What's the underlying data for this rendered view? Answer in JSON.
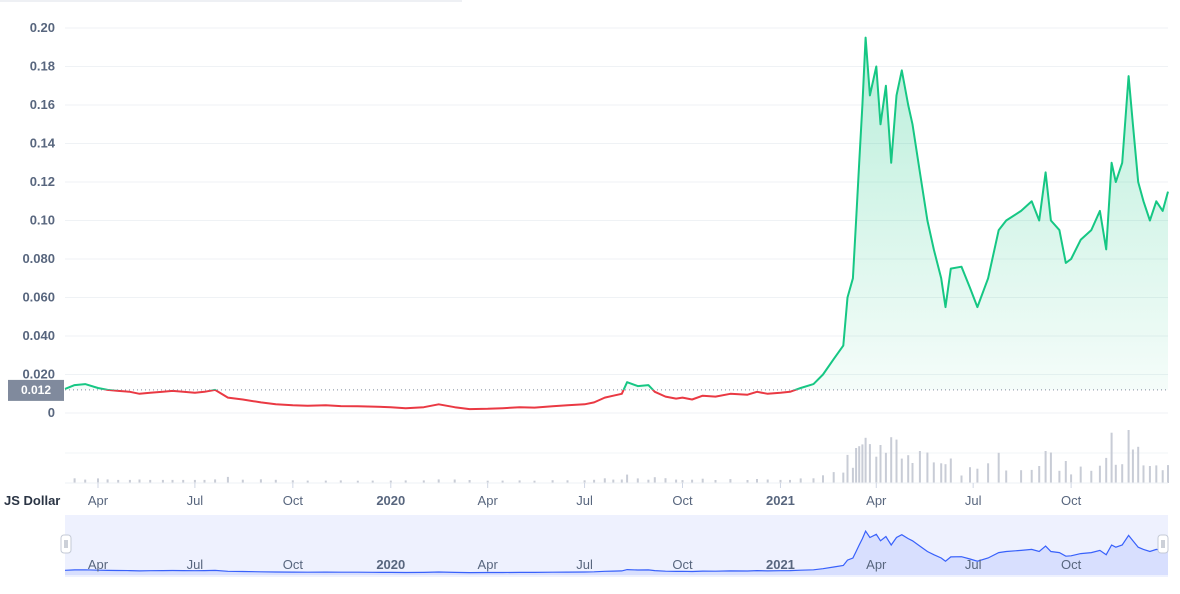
{
  "chart_data": {
    "type": "line",
    "currency_label": "JS Dollar",
    "reference_price": "0.012",
    "reference_value": 0.012,
    "y_ticks": [
      "0",
      "0.020",
      "0.040",
      "0.060",
      "0.080",
      "0.10",
      "0.12",
      "0.14",
      "0.16",
      "0.18",
      "0.20"
    ],
    "y_tick_values": [
      0,
      0.02,
      0.04,
      0.06,
      0.08,
      0.1,
      0.12,
      0.14,
      0.16,
      0.18,
      0.2
    ],
    "ylim": [
      0,
      0.2
    ],
    "x_ticks": [
      "Apr",
      "Jul",
      "Oct",
      "2020",
      "Apr",
      "Jul",
      "Oct",
      "2021",
      "Apr",
      "Jul",
      "Oct"
    ],
    "x_tick_dates": [
      "2019-04-01",
      "2019-07-01",
      "2019-10-01",
      "2020-01-01",
      "2020-04-01",
      "2020-07-01",
      "2020-10-01",
      "2021-01-01",
      "2021-04-01",
      "2021-07-01",
      "2021-10-01"
    ],
    "xlim": [
      "2019-03-01",
      "2021-12-31"
    ],
    "grid": true,
    "colors": {
      "up": "#16c784",
      "down": "#ea3943",
      "navigator": "#3861fb",
      "volume": "#c8ccd6",
      "reference": "#808a9d"
    },
    "series": [
      {
        "values": [
          [
            "2019-03-01",
            0.0125
          ],
          [
            "2019-03-10",
            0.0145
          ],
          [
            "2019-03-20",
            0.015
          ],
          [
            "2019-04-01",
            0.013
          ],
          [
            "2019-04-10",
            0.012
          ],
          [
            "2019-04-20",
            0.0115
          ],
          [
            "2019-05-01",
            0.011
          ],
          [
            "2019-05-10",
            0.01
          ],
          [
            "2019-05-20",
            0.0105
          ],
          [
            "2019-06-01",
            0.011
          ],
          [
            "2019-06-10",
            0.0115
          ],
          [
            "2019-06-20",
            0.011
          ],
          [
            "2019-07-01",
            0.0105
          ],
          [
            "2019-07-10",
            0.011
          ],
          [
            "2019-07-20",
            0.012
          ],
          [
            "2019-08-01",
            0.008
          ],
          [
            "2019-08-15",
            0.007
          ],
          [
            "2019-09-01",
            0.0055
          ],
          [
            "2019-09-15",
            0.0045
          ],
          [
            "2019-10-01",
            0.004
          ],
          [
            "2019-10-15",
            0.0038
          ],
          [
            "2019-11-01",
            0.004
          ],
          [
            "2019-11-15",
            0.0036
          ],
          [
            "2019-12-01",
            0.0035
          ],
          [
            "2019-12-15",
            0.0033
          ],
          [
            "2020-01-01",
            0.003
          ],
          [
            "2020-01-15",
            0.0025
          ],
          [
            "2020-02-01",
            0.003
          ],
          [
            "2020-02-15",
            0.0045
          ],
          [
            "2020-03-01",
            0.003
          ],
          [
            "2020-03-15",
            0.002
          ],
          [
            "2020-04-01",
            0.0022
          ],
          [
            "2020-04-15",
            0.0025
          ],
          [
            "2020-05-01",
            0.003
          ],
          [
            "2020-05-15",
            0.0028
          ],
          [
            "2020-06-01",
            0.0035
          ],
          [
            "2020-06-15",
            0.004
          ],
          [
            "2020-07-01",
            0.0045
          ],
          [
            "2020-07-10",
            0.0055
          ],
          [
            "2020-07-20",
            0.008
          ],
          [
            "2020-07-28",
            0.009
          ],
          [
            "2020-08-05",
            0.01
          ],
          [
            "2020-08-10",
            0.016
          ],
          [
            "2020-08-20",
            0.014
          ],
          [
            "2020-08-30",
            0.0145
          ],
          [
            "2020-09-05",
            0.011
          ],
          [
            "2020-09-15",
            0.0085
          ],
          [
            "2020-09-25",
            0.0075
          ],
          [
            "2020-10-01",
            0.008
          ],
          [
            "2020-10-10",
            0.007
          ],
          [
            "2020-10-20",
            0.009
          ],
          [
            "2020-11-01",
            0.0085
          ],
          [
            "2020-11-15",
            0.01
          ],
          [
            "2020-12-01",
            0.0095
          ],
          [
            "2020-12-10",
            0.011
          ],
          [
            "2020-12-20",
            0.01
          ],
          [
            "2021-01-01",
            0.0105
          ],
          [
            "2021-01-10",
            0.011
          ],
          [
            "2021-01-20",
            0.013
          ],
          [
            "2021-02-01",
            0.015
          ],
          [
            "2021-02-10",
            0.02
          ],
          [
            "2021-02-20",
            0.028
          ],
          [
            "2021-03-01",
            0.035
          ],
          [
            "2021-03-05",
            0.06
          ],
          [
            "2021-03-10",
            0.07
          ],
          [
            "2021-03-13",
            0.1
          ],
          [
            "2021-03-16",
            0.13
          ],
          [
            "2021-03-19",
            0.16
          ],
          [
            "2021-03-22",
            0.195
          ],
          [
            "2021-03-26",
            0.165
          ],
          [
            "2021-04-01",
            0.18
          ],
          [
            "2021-04-05",
            0.15
          ],
          [
            "2021-04-10",
            0.17
          ],
          [
            "2021-04-15",
            0.13
          ],
          [
            "2021-04-20",
            0.165
          ],
          [
            "2021-04-25",
            0.178
          ],
          [
            "2021-05-01",
            0.16
          ],
          [
            "2021-05-05",
            0.15
          ],
          [
            "2021-05-12",
            0.125
          ],
          [
            "2021-05-19",
            0.1
          ],
          [
            "2021-05-25",
            0.085
          ],
          [
            "2021-06-01",
            0.07
          ],
          [
            "2021-06-05",
            0.055
          ],
          [
            "2021-06-10",
            0.075
          ],
          [
            "2021-06-20",
            0.076
          ],
          [
            "2021-06-28",
            0.065
          ],
          [
            "2021-07-05",
            0.055
          ],
          [
            "2021-07-15",
            0.07
          ],
          [
            "2021-07-25",
            0.095
          ],
          [
            "2021-08-01",
            0.1
          ],
          [
            "2021-08-15",
            0.105
          ],
          [
            "2021-08-25",
            0.11
          ],
          [
            "2021-09-01",
            0.1
          ],
          [
            "2021-09-07",
            0.125
          ],
          [
            "2021-09-12",
            0.1
          ],
          [
            "2021-09-20",
            0.095
          ],
          [
            "2021-09-26",
            0.078
          ],
          [
            "2021-10-01",
            0.08
          ],
          [
            "2021-10-10",
            0.09
          ],
          [
            "2021-10-20",
            0.095
          ],
          [
            "2021-10-28",
            0.105
          ],
          [
            "2021-11-03",
            0.085
          ],
          [
            "2021-11-08",
            0.13
          ],
          [
            "2021-11-12",
            0.12
          ],
          [
            "2021-11-18",
            0.13
          ],
          [
            "2021-11-24",
            0.175
          ],
          [
            "2021-11-28",
            0.15
          ],
          [
            "2021-12-03",
            0.12
          ],
          [
            "2021-12-08",
            0.11
          ],
          [
            "2021-12-14",
            0.1
          ],
          [
            "2021-12-20",
            0.11
          ],
          [
            "2021-12-26",
            0.105
          ],
          [
            "2021-12-31",
            0.115
          ]
        ]
      }
    ]
  }
}
